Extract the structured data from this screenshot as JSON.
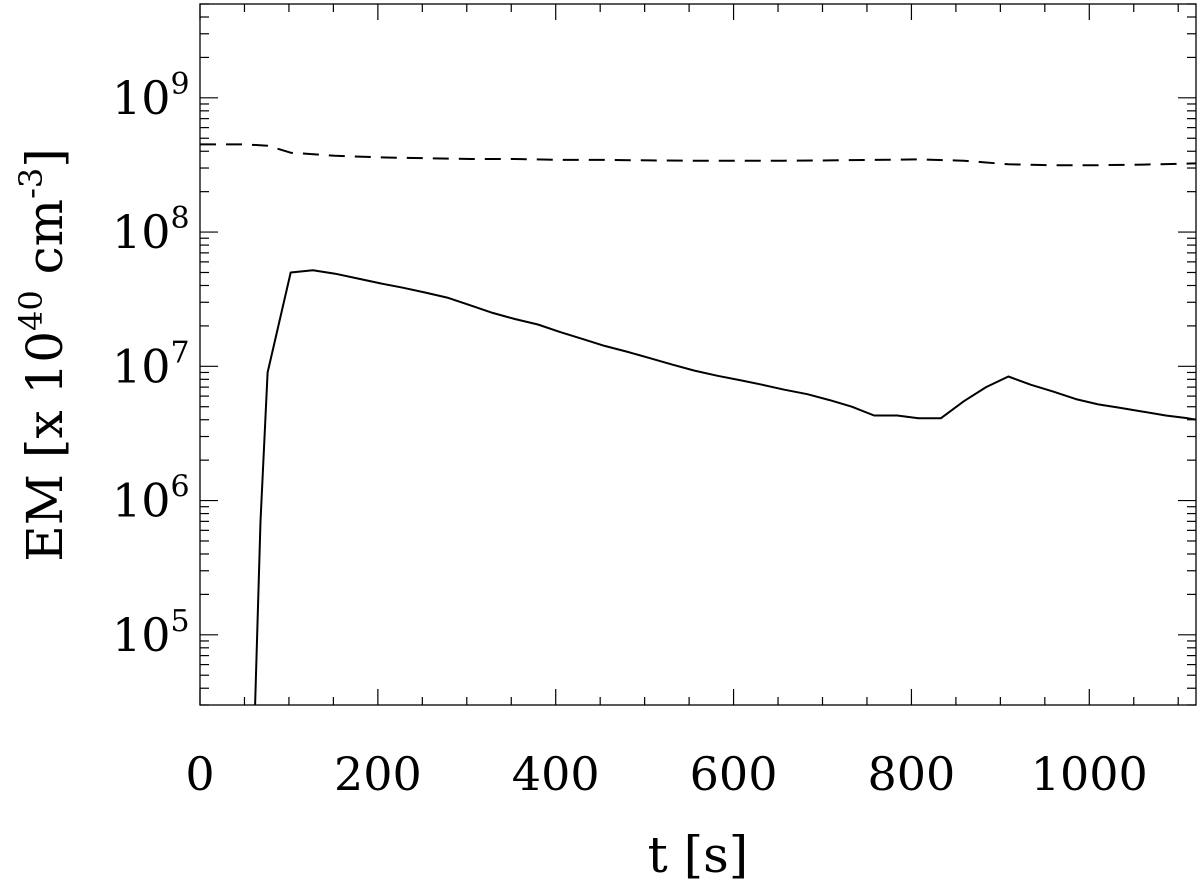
{
  "chart_data": {
    "type": "line",
    "title": "",
    "xlabel": "t  [s]",
    "ylabel": {
      "main": "EM  [x 10",
      "sup1": "40",
      "mid": " cm",
      "sup2": "-3",
      "end": "]"
    },
    "xlim": [
      0,
      1120
    ],
    "ylim": [
      30000,
      5000000000
    ],
    "yscale": "log",
    "grid": false,
    "legend": "none",
    "x_ticks": [
      0,
      200,
      400,
      600,
      800,
      1000
    ],
    "x_tick_labels": [
      "0",
      "200",
      "400",
      "600",
      "800",
      "1000"
    ],
    "y_ticks": [
      {
        "value": 100000,
        "base": "10",
        "exp": "5"
      },
      {
        "value": 1000000,
        "base": "10",
        "exp": "6"
      },
      {
        "value": 10000000,
        "base": "10",
        "exp": "7"
      },
      {
        "value": 100000000,
        "base": "10",
        "exp": "8"
      },
      {
        "value": 1000000000,
        "base": "10",
        "exp": "9"
      }
    ],
    "series": [
      {
        "style": "solid",
        "x": [
          62,
          68,
          76,
          102,
          127,
          152,
          178,
          203,
          228,
          253,
          278,
          304,
          329,
          354,
          380,
          405,
          430,
          455,
          481,
          506,
          531,
          556,
          582,
          607,
          632,
          657,
          683,
          708,
          733,
          758,
          784,
          808,
          833,
          859,
          884,
          909,
          934,
          959,
          985,
          1010,
          1035,
          1060,
          1086,
          1111,
          1120
        ],
        "y": [
          30000,
          700000,
          9000000,
          50000000,
          52000000,
          49000000,
          45000000,
          41500000,
          38500000,
          35500000,
          32500000,
          28500000,
          25000000,
          22500000,
          20500000,
          18000000,
          16000000,
          14200000,
          12800000,
          11500000,
          10300000,
          9300000,
          8500000,
          7900000,
          7300000,
          6700000,
          6200000,
          5600000,
          5000000,
          4300000,
          4300000,
          4100000,
          4100000,
          5500000,
          7000000,
          8400000,
          7300000,
          6500000,
          5700000,
          5200000,
          4900000,
          4600000,
          4300000,
          4100000,
          4000000
        ]
      },
      {
        "style": "dashed",
        "x": [
          0,
          50,
          76,
          102,
          152,
          203,
          253,
          304,
          354,
          405,
          455,
          506,
          556,
          607,
          657,
          708,
          758,
          808,
          859,
          909,
          959,
          1010,
          1060,
          1120
        ],
        "y": [
          450000000,
          450000000,
          440000000,
          390000000,
          370000000,
          360000000,
          355000000,
          350000000,
          350000000,
          345000000,
          345000000,
          342000000,
          340000000,
          340000000,
          340000000,
          342000000,
          345000000,
          348000000,
          340000000,
          320000000,
          315000000,
          315000000,
          318000000,
          325000000
        ]
      }
    ]
  }
}
